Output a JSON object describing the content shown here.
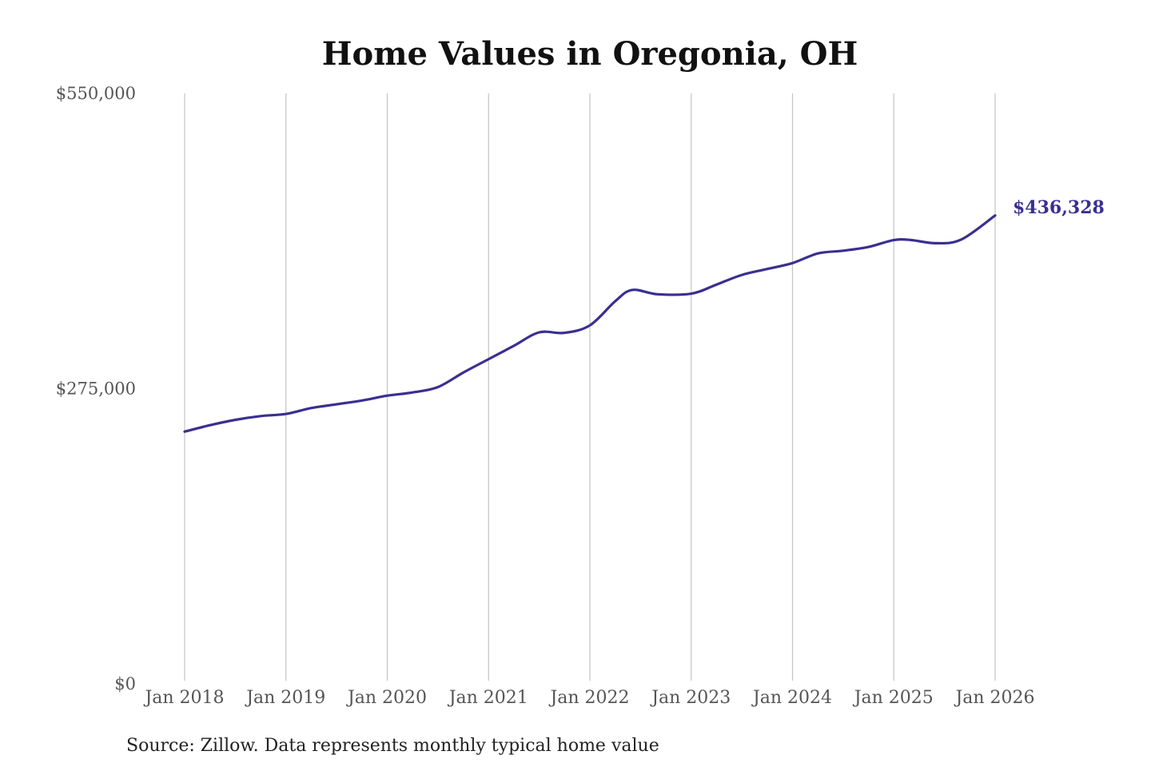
{
  "chart_data": {
    "type": "line",
    "title": "Home Values in Oregonia, OH",
    "source": "Source: Zillow. Data represents monthly typical home value",
    "xlabel": "",
    "ylabel": "",
    "ylim": [
      0,
      550000
    ],
    "y_ticks": [
      {
        "value": 0,
        "label": "$0"
      },
      {
        "value": 275000,
        "label": "$275,000"
      },
      {
        "value": 550000,
        "label": "$550,000"
      }
    ],
    "x_ticks": [
      {
        "value": "2018-01",
        "label": "Jan 2018"
      },
      {
        "value": "2019-01",
        "label": "Jan 2019"
      },
      {
        "value": "2020-01",
        "label": "Jan 2020"
      },
      {
        "value": "2021-01",
        "label": "Jan 2021"
      },
      {
        "value": "2022-01",
        "label": "Jan 2022"
      },
      {
        "value": "2023-01",
        "label": "Jan 2023"
      },
      {
        "value": "2024-01",
        "label": "Jan 2024"
      },
      {
        "value": "2025-01",
        "label": "Jan 2025"
      },
      {
        "value": "2026-01",
        "label": "Jan 2026"
      }
    ],
    "grid": {
      "vertical": true,
      "horizontal": false
    },
    "line_color": "#3a2f91",
    "end_label": "$436,328",
    "series": [
      {
        "values": [
          {
            "x": "2018-01",
            "y": 235000
          },
          {
            "x": "2018-04",
            "y": 241000
          },
          {
            "x": "2018-07",
            "y": 246000
          },
          {
            "x": "2018-10",
            "y": 249500
          },
          {
            "x": "2019-01",
            "y": 251500
          },
          {
            "x": "2019-04",
            "y": 257000
          },
          {
            "x": "2019-07",
            "y": 260500
          },
          {
            "x": "2019-10",
            "y": 264000
          },
          {
            "x": "2020-01",
            "y": 268500
          },
          {
            "x": "2020-04",
            "y": 271500
          },
          {
            "x": "2020-07",
            "y": 276500
          },
          {
            "x": "2020-10",
            "y": 290000
          },
          {
            "x": "2021-01",
            "y": 302500
          },
          {
            "x": "2021-04",
            "y": 315000
          },
          {
            "x": "2021-07",
            "y": 327500
          },
          {
            "x": "2021-10",
            "y": 327000
          },
          {
            "x": "2022-01",
            "y": 334000
          },
          {
            "x": "2022-04",
            "y": 356500
          },
          {
            "x": "2022-06",
            "y": 367000
          },
          {
            "x": "2022-09",
            "y": 363000
          },
          {
            "x": "2023-01",
            "y": 363500
          },
          {
            "x": "2023-04",
            "y": 372000
          },
          {
            "x": "2023-07",
            "y": 381000
          },
          {
            "x": "2023-10",
            "y": 386500
          },
          {
            "x": "2024-01",
            "y": 392000
          },
          {
            "x": "2024-04",
            "y": 401000
          },
          {
            "x": "2024-07",
            "y": 403500
          },
          {
            "x": "2024-10",
            "y": 407000
          },
          {
            "x": "2025-01",
            "y": 413500
          },
          {
            "x": "2025-03",
            "y": 413500
          },
          {
            "x": "2025-06",
            "y": 410500
          },
          {
            "x": "2025-09",
            "y": 414000
          },
          {
            "x": "2026-01",
            "y": 436328
          }
        ]
      }
    ]
  }
}
